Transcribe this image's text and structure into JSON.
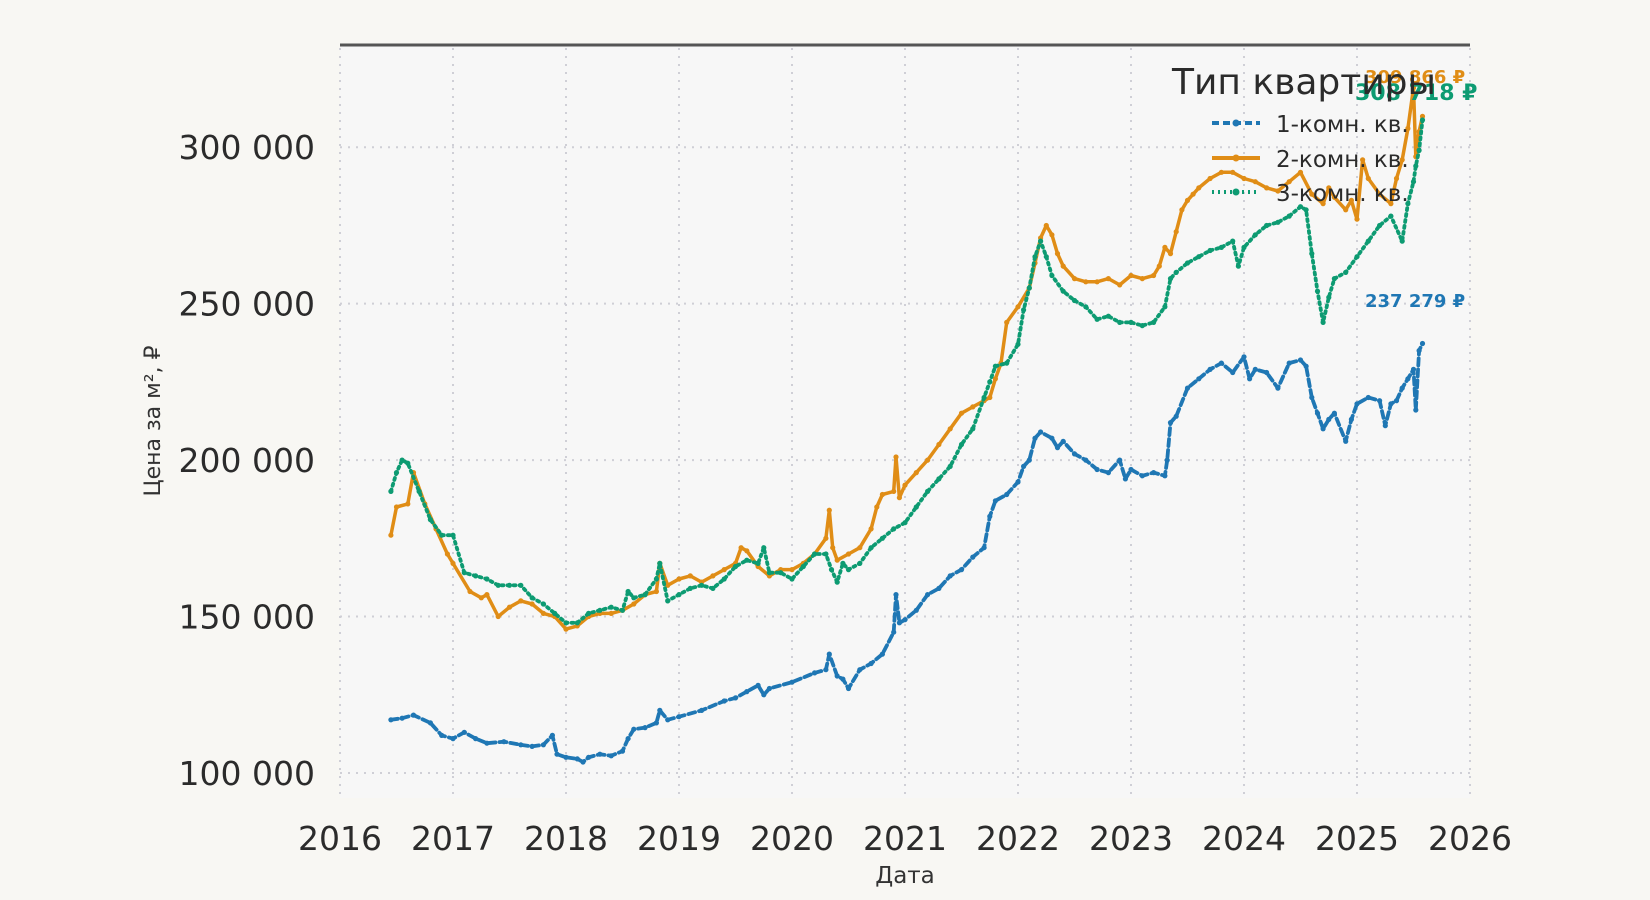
{
  "chart_data": {
    "type": "line",
    "title": "",
    "xlabel": "Дата",
    "ylabel": "Цена за м², ₽",
    "xlim": [
      2016,
      2026
    ],
    "ylim": [
      92000,
      333000
    ],
    "x_ticks": [
      "2016",
      "2017",
      "2018",
      "2019",
      "2020",
      "2021",
      "2022",
      "2023",
      "2024",
      "2025",
      "2026"
    ],
    "y_ticks": [
      "100 000",
      "150 000",
      "200 000",
      "250 000",
      "300 000"
    ],
    "y_tick_values": [
      100000,
      150000,
      200000,
      250000,
      300000
    ],
    "grid": true,
    "legend": {
      "title": "Тип квартиры",
      "position": "top-right"
    },
    "series": [
      {
        "name": "1-комн. кв.",
        "color": "#1f77b4",
        "style": "dashed",
        "last_label": "237 279 ₽",
        "x": [
          2016.45,
          2016.55,
          2016.65,
          2016.8,
          2016.9,
          2017.0,
          2017.1,
          2017.2,
          2017.3,
          2017.45,
          2017.6,
          2017.7,
          2017.8,
          2017.88,
          2017.92,
          2018.0,
          2018.1,
          2018.15,
          2018.2,
          2018.3,
          2018.4,
          2018.5,
          2018.55,
          2018.6,
          2018.7,
          2018.8,
          2018.83,
          2018.9,
          2019.0,
          2019.2,
          2019.4,
          2019.5,
          2019.6,
          2019.7,
          2019.75,
          2019.8,
          2020.0,
          2020.2,
          2020.3,
          2020.33,
          2020.4,
          2020.45,
          2020.5,
          2020.6,
          2020.7,
          2020.8,
          2020.9,
          2020.92,
          2020.95,
          2021.0,
          2021.1,
          2021.2,
          2021.3,
          2021.4,
          2021.5,
          2021.6,
          2021.7,
          2021.75,
          2021.8,
          2021.9,
          2022.0,
          2022.05,
          2022.1,
          2022.15,
          2022.2,
          2022.3,
          2022.35,
          2022.4,
          2022.5,
          2022.6,
          2022.7,
          2022.8,
          2022.9,
          2022.95,
          2023.0,
          2023.1,
          2023.2,
          2023.3,
          2023.32,
          2023.35,
          2023.4,
          2023.5,
          2023.6,
          2023.7,
          2023.8,
          2023.9,
          2024.0,
          2024.05,
          2024.1,
          2024.2,
          2024.3,
          2024.4,
          2024.5,
          2024.55,
          2024.6,
          2024.65,
          2024.7,
          2024.75,
          2024.8,
          2024.9,
          2024.95,
          2025.0,
          2025.1,
          2025.2,
          2025.25,
          2025.3,
          2025.35,
          2025.4,
          2025.45,
          2025.5,
          2025.52,
          2025.55,
          2025.58
        ],
        "values": [
          117000,
          117500,
          118500,
          116000,
          112000,
          111000,
          113000,
          111000,
          109500,
          110000,
          109000,
          108500,
          109000,
          112000,
          106000,
          105000,
          104500,
          103500,
          105000,
          106000,
          105500,
          107000,
          111000,
          114000,
          114500,
          116000,
          120000,
          117000,
          118000,
          120000,
          123000,
          124000,
          126000,
          128000,
          125000,
          127000,
          129000,
          132000,
          133000,
          138000,
          131000,
          130000,
          127000,
          133000,
          135000,
          138000,
          145000,
          157000,
          148000,
          149000,
          152000,
          157000,
          159000,
          163000,
          165000,
          169000,
          172000,
          182000,
          187000,
          189000,
          193000,
          198000,
          200000,
          207000,
          209000,
          207000,
          204000,
          206000,
          202000,
          200000,
          197000,
          196000,
          200000,
          194000,
          197000,
          195000,
          196000,
          195000,
          200000,
          212000,
          214000,
          223000,
          226000,
          229000,
          231000,
          228000,
          233000,
          226000,
          229000,
          228000,
          223000,
          231000,
          232000,
          230000,
          220000,
          215000,
          210000,
          213000,
          215000,
          206000,
          213000,
          218000,
          220000,
          219000,
          211000,
          218000,
          219000,
          223000,
          226000,
          229000,
          216000,
          235000,
          237279
        ]
      },
      {
        "name": "2-комн. кв.",
        "color": "#e08d16",
        "style": "solid",
        "last_label": "309 866 ₽",
        "x": [
          2016.45,
          2016.5,
          2016.6,
          2016.65,
          2016.75,
          2016.85,
          2016.95,
          2017.0,
          2017.15,
          2017.25,
          2017.3,
          2017.4,
          2017.5,
          2017.6,
          2017.7,
          2017.8,
          2017.9,
          2018.0,
          2018.1,
          2018.2,
          2018.3,
          2018.4,
          2018.5,
          2018.6,
          2018.7,
          2018.8,
          2018.83,
          2018.9,
          2019.0,
          2019.1,
          2019.2,
          2019.3,
          2019.4,
          2019.5,
          2019.55,
          2019.6,
          2019.7,
          2019.8,
          2019.9,
          2020.0,
          2020.1,
          2020.2,
          2020.3,
          2020.33,
          2020.36,
          2020.4,
          2020.5,
          2020.6,
          2020.7,
          2020.75,
          2020.8,
          2020.9,
          2020.92,
          2020.95,
          2021.0,
          2021.1,
          2021.2,
          2021.3,
          2021.4,
          2021.5,
          2021.6,
          2021.7,
          2021.75,
          2021.8,
          2021.85,
          2021.9,
          2022.0,
          2022.1,
          2022.15,
          2022.2,
          2022.25,
          2022.3,
          2022.35,
          2022.4,
          2022.5,
          2022.6,
          2022.7,
          2022.8,
          2022.9,
          2023.0,
          2023.1,
          2023.2,
          2023.25,
          2023.3,
          2023.35,
          2023.4,
          2023.45,
          2023.5,
          2023.55,
          2023.6,
          2023.7,
          2023.8,
          2023.9,
          2024.0,
          2024.1,
          2024.2,
          2024.3,
          2024.4,
          2024.5,
          2024.6,
          2024.7,
          2024.75,
          2024.8,
          2024.9,
          2024.95,
          2025.0,
          2025.05,
          2025.1,
          2025.2,
          2025.3,
          2025.35,
          2025.4,
          2025.45,
          2025.5,
          2025.52,
          2025.55,
          2025.58
        ],
        "values": [
          176000,
          185000,
          186000,
          196000,
          186000,
          178000,
          170000,
          167000,
          158000,
          156000,
          157000,
          150000,
          153000,
          155000,
          154000,
          151000,
          150000,
          146000,
          147000,
          150000,
          151000,
          151000,
          152000,
          154000,
          157000,
          158000,
          167000,
          160000,
          162000,
          163000,
          161000,
          163000,
          165000,
          167000,
          172000,
          171000,
          166000,
          163000,
          165000,
          165000,
          167000,
          170000,
          175000,
          184000,
          172000,
          168000,
          170000,
          172000,
          178000,
          185000,
          189000,
          190000,
          201000,
          188000,
          192000,
          196000,
          200000,
          205000,
          210000,
          215000,
          217000,
          219000,
          220000,
          226000,
          231000,
          244000,
          249000,
          255000,
          263000,
          271000,
          275000,
          272000,
          266000,
          262000,
          258000,
          257000,
          257000,
          258000,
          256000,
          259000,
          258000,
          259000,
          262000,
          268000,
          266000,
          273000,
          280000,
          283000,
          285000,
          287000,
          290000,
          292000,
          292000,
          290000,
          289000,
          287000,
          286000,
          289000,
          292000,
          285000,
          282000,
          287000,
          284000,
          280000,
          283000,
          277000,
          296000,
          290000,
          285000,
          282000,
          290000,
          296000,
          306000,
          319000,
          297000,
          305000,
          309866
        ]
      },
      {
        "name": "3-комн. кв.",
        "color": "#0d9b72",
        "style": "dotted",
        "last_label": "308 718 ₽",
        "x": [
          2016.45,
          2016.5,
          2016.55,
          2016.6,
          2016.7,
          2016.8,
          2016.9,
          2017.0,
          2017.1,
          2017.2,
          2017.3,
          2017.4,
          2017.5,
          2017.6,
          2017.7,
          2017.8,
          2017.9,
          2018.0,
          2018.1,
          2018.2,
          2018.3,
          2018.4,
          2018.5,
          2018.55,
          2018.6,
          2018.7,
          2018.8,
          2018.83,
          2018.9,
          2019.0,
          2019.1,
          2019.2,
          2019.3,
          2019.4,
          2019.5,
          2019.6,
          2019.7,
          2019.75,
          2019.8,
          2019.9,
          2020.0,
          2020.1,
          2020.2,
          2020.3,
          2020.35,
          2020.4,
          2020.45,
          2020.5,
          2020.6,
          2020.7,
          2020.8,
          2020.9,
          2021.0,
          2021.1,
          2021.2,
          2021.3,
          2021.4,
          2021.5,
          2021.6,
          2021.7,
          2021.75,
          2021.8,
          2021.9,
          2022.0,
          2022.05,
          2022.1,
          2022.15,
          2022.2,
          2022.25,
          2022.3,
          2022.4,
          2022.5,
          2022.6,
          2022.7,
          2022.8,
          2022.9,
          2023.0,
          2023.1,
          2023.2,
          2023.3,
          2023.35,
          2023.4,
          2023.5,
          2023.6,
          2023.7,
          2023.8,
          2023.9,
          2023.95,
          2024.0,
          2024.1,
          2024.2,
          2024.3,
          2024.4,
          2024.5,
          2024.55,
          2024.6,
          2024.65,
          2024.7,
          2024.75,
          2024.8,
          2024.9,
          2025.0,
          2025.1,
          2025.2,
          2025.3,
          2025.4,
          2025.45,
          2025.5,
          2025.52,
          2025.55,
          2025.58
        ],
        "values": [
          190000,
          196000,
          200000,
          199000,
          190000,
          181000,
          176000,
          176000,
          164000,
          163000,
          162000,
          160000,
          160000,
          160000,
          156000,
          154000,
          151000,
          148000,
          148000,
          151000,
          152000,
          153000,
          152000,
          158000,
          156000,
          157000,
          162000,
          167000,
          155000,
          157000,
          159000,
          160000,
          159000,
          162000,
          166000,
          168000,
          167000,
          172000,
          164000,
          164000,
          162000,
          166000,
          170000,
          170000,
          165000,
          161000,
          167000,
          165000,
          167000,
          172000,
          175000,
          178000,
          180000,
          185000,
          190000,
          194000,
          198000,
          205000,
          210000,
          220000,
          225000,
          230000,
          231000,
          237000,
          248000,
          255000,
          265000,
          270000,
          265000,
          259000,
          254000,
          251000,
          249000,
          245000,
          246000,
          244000,
          244000,
          243000,
          244000,
          249000,
          258000,
          260000,
          263000,
          265000,
          267000,
          268000,
          270000,
          262000,
          268000,
          272000,
          275000,
          276000,
          278000,
          281000,
          280000,
          266000,
          254000,
          244000,
          252000,
          258000,
          260000,
          265000,
          270000,
          275000,
          278000,
          270000,
          282000,
          289000,
          294000,
          299000,
          308718
        ]
      }
    ]
  }
}
